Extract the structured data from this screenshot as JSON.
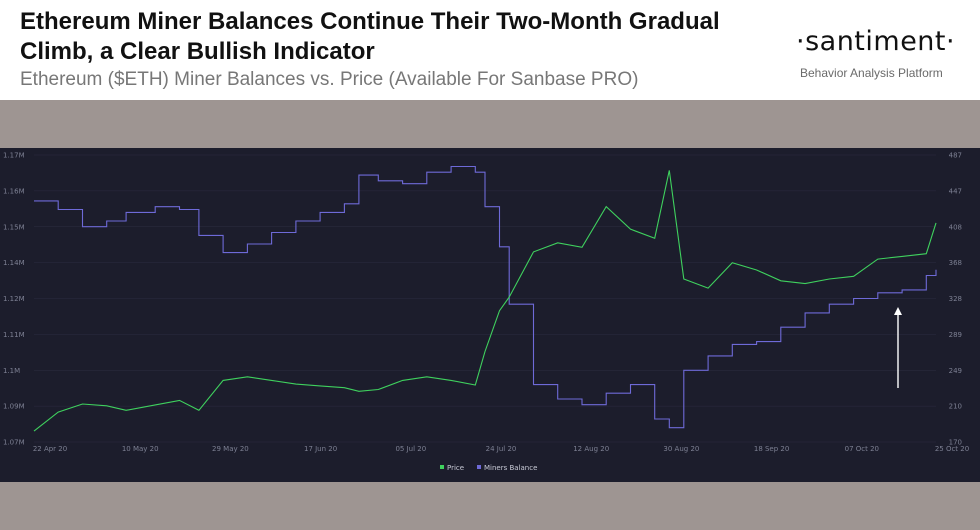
{
  "header": {
    "title": "Ethereum Miner Balances Continue Their Two-Month Gradual Climb, a Clear Bullish Indicator",
    "subtitle": "Ethereum ($ETH) Miner Balances vs. Price (Available For Sanbase PRO)",
    "brand": "·santiment·",
    "brand_tagline": "Behavior Analysis Platform"
  },
  "colors": {
    "price": "#3fd15e",
    "miners_balance": "#6e6ad8",
    "panel_bg": "#1c1d2c",
    "band_bg": "#9e9592",
    "grid": "#2b2d40",
    "arrow": "#ffffff"
  },
  "chart_data": {
    "type": "line",
    "title": "",
    "x_ticks": [
      "22 Apr 20",
      "10 May 20",
      "29 May 20",
      "17 Jun 20",
      "05 Jul 20",
      "24 Jul 20",
      "12 Aug 20",
      "30 Aug 20",
      "18 Sep 20",
      "07 Oct 20",
      "25 Oct 20"
    ],
    "left_axis": {
      "label": "",
      "ticks": [
        "1.07M",
        "1.09M",
        "1.1M",
        "1.11M",
        "1.12M",
        "1.14M",
        "1.15M",
        "1.16M",
        "1.17M"
      ],
      "ylim": [
        1.07,
        1.17
      ]
    },
    "right_axis": {
      "label": "",
      "ticks": [
        "170",
        "210",
        "249",
        "289",
        "328",
        "368",
        "408",
        "447",
        "487"
      ],
      "ylim": [
        170,
        487
      ]
    },
    "legend": [
      "Price",
      "Miners Balance"
    ],
    "legend_position": "bottom-center",
    "annotation": "white arrow pointing up at late-October miner balance",
    "series": [
      {
        "name": "Miners Balance",
        "axis": "left",
        "unit": "M ETH",
        "x": [
          "2020-04-22",
          "2020-04-27",
          "2020-05-02",
          "2020-05-07",
          "2020-05-11",
          "2020-05-17",
          "2020-05-22",
          "2020-05-26",
          "2020-05-31",
          "2020-06-05",
          "2020-06-10",
          "2020-06-15",
          "2020-06-20",
          "2020-06-25",
          "2020-06-28",
          "2020-07-02",
          "2020-07-07",
          "2020-07-12",
          "2020-07-17",
          "2020-07-22",
          "2020-07-24",
          "2020-07-27",
          "2020-07-29",
          "2020-08-03",
          "2020-08-08",
          "2020-08-13",
          "2020-08-18",
          "2020-08-23",
          "2020-08-28",
          "2020-08-31",
          "2020-09-03",
          "2020-09-08",
          "2020-09-13",
          "2020-09-18",
          "2020-09-23",
          "2020-09-28",
          "2020-10-03",
          "2020-10-08",
          "2020-10-13",
          "2020-10-18",
          "2020-10-23",
          "2020-10-25"
        ],
        "values": [
          1.154,
          1.151,
          1.145,
          1.147,
          1.15,
          1.152,
          1.151,
          1.142,
          1.136,
          1.139,
          1.143,
          1.147,
          1.15,
          1.153,
          1.163,
          1.161,
          1.16,
          1.164,
          1.166,
          1.164,
          1.152,
          1.138,
          1.118,
          1.09,
          1.085,
          1.083,
          1.087,
          1.09,
          1.078,
          1.075,
          1.095,
          1.1,
          1.104,
          1.105,
          1.11,
          1.115,
          1.118,
          1.12,
          1.122,
          1.123,
          1.128,
          1.13
        ]
      },
      {
        "name": "Price",
        "axis": "right",
        "unit": "USD",
        "x": [
          "2020-04-22",
          "2020-04-27",
          "2020-05-02",
          "2020-05-07",
          "2020-05-11",
          "2020-05-17",
          "2020-05-22",
          "2020-05-26",
          "2020-05-31",
          "2020-06-05",
          "2020-06-10",
          "2020-06-15",
          "2020-06-20",
          "2020-06-25",
          "2020-06-28",
          "2020-07-02",
          "2020-07-07",
          "2020-07-12",
          "2020-07-17",
          "2020-07-22",
          "2020-07-24",
          "2020-07-27",
          "2020-07-29",
          "2020-08-03",
          "2020-08-08",
          "2020-08-13",
          "2020-08-18",
          "2020-08-23",
          "2020-08-28",
          "2020-08-31",
          "2020-09-03",
          "2020-09-08",
          "2020-09-13",
          "2020-09-18",
          "2020-09-23",
          "2020-09-28",
          "2020-10-03",
          "2020-10-08",
          "2020-10-13",
          "2020-10-18",
          "2020-10-23",
          "2020-10-25"
        ],
        "values": [
          182,
          203,
          212,
          210,
          205,
          211,
          216,
          205,
          238,
          242,
          238,
          234,
          232,
          230,
          226,
          228,
          238,
          242,
          238,
          233,
          270,
          315,
          330,
          380,
          390,
          385,
          430,
          405,
          395,
          470,
          350,
          340,
          368,
          360,
          348,
          345,
          350,
          353,
          372,
          375,
          378,
          412
        ]
      }
    ]
  }
}
